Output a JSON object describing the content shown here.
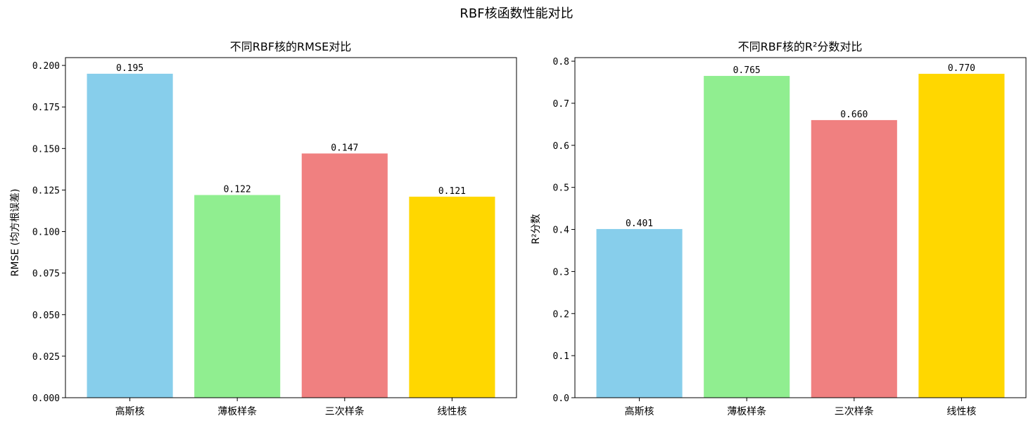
{
  "figure": {
    "title": "RBF核函数性能对比"
  },
  "chart_data": [
    {
      "type": "bar",
      "title": "不同RBF核的RMSE对比",
      "xlabel": "",
      "ylabel": "RMSE (均方根误差)",
      "categories": [
        "高斯核",
        "薄板样条",
        "三次样条",
        "线性核"
      ],
      "values": [
        0.195,
        0.122,
        0.147,
        0.121
      ],
      "value_labels": [
        "0.195",
        "0.122",
        "0.147",
        "0.121"
      ],
      "colors": [
        "#87CEEB",
        "#90EE90",
        "#F08080",
        "#FFD700"
      ],
      "ylim": [
        0,
        0.2047
      ],
      "yticks": [
        0.0,
        0.025,
        0.05,
        0.075,
        0.1,
        0.125,
        0.15,
        0.175,
        0.2
      ],
      "ytick_labels": [
        "0.000",
        "0.025",
        "0.050",
        "0.075",
        "0.100",
        "0.125",
        "0.150",
        "0.175",
        "0.200"
      ],
      "grid": false,
      "legend": "none"
    },
    {
      "type": "bar",
      "title": "不同RBF核的R²分数对比",
      "xlabel": "",
      "ylabel": "R²分数",
      "categories": [
        "高斯核",
        "薄板样条",
        "三次样条",
        "线性核"
      ],
      "values": [
        0.401,
        0.765,
        0.66,
        0.77
      ],
      "value_labels": [
        "0.401",
        "0.765",
        "0.660",
        "0.770"
      ],
      "colors": [
        "#87CEEB",
        "#90EE90",
        "#F08080",
        "#FFD700"
      ],
      "ylim": [
        0,
        0.8085
      ],
      "yticks": [
        0.0,
        0.1,
        0.2,
        0.3,
        0.4,
        0.5,
        0.6,
        0.7,
        0.8
      ],
      "ytick_labels": [
        "0.0",
        "0.1",
        "0.2",
        "0.3",
        "0.4",
        "0.5",
        "0.6",
        "0.7",
        "0.8"
      ],
      "grid": false,
      "legend": "none"
    }
  ]
}
